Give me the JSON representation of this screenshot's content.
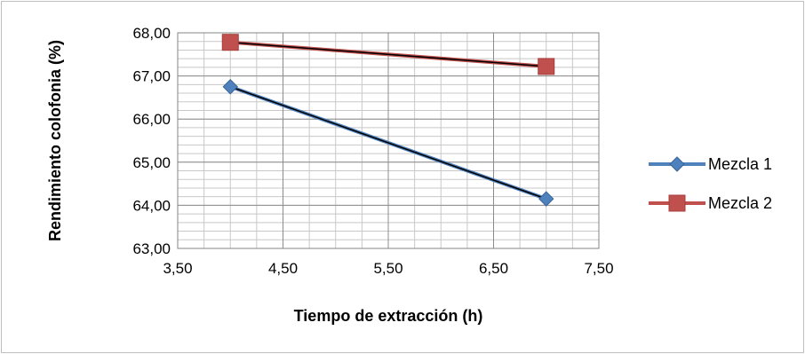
{
  "chart_data": {
    "type": "line",
    "xlabel": "Tiempo de extracción (h)",
    "ylabel": "Rendimiento colofonia (%)",
    "xlim": [
      3.5,
      7.5
    ],
    "ylim": [
      63,
      68
    ],
    "x_ticks": [
      "3,50",
      "4,50",
      "5,50",
      "6,50",
      "7,50"
    ],
    "y_ticks": [
      "63,00",
      "64,00",
      "65,00",
      "66,00",
      "67,00",
      "68,00"
    ],
    "grid": true,
    "legend_position": "right",
    "series": [
      {
        "name": "Mezcla 1",
        "marker": "diamond",
        "color": "#4f81bd",
        "x": [
          4,
          7
        ],
        "y": [
          66.75,
          64.15
        ]
      },
      {
        "name": "Mezcla 2",
        "marker": "square",
        "color": "#c0504d",
        "x": [
          4,
          7
        ],
        "y": [
          67.78,
          67.22
        ]
      }
    ]
  }
}
